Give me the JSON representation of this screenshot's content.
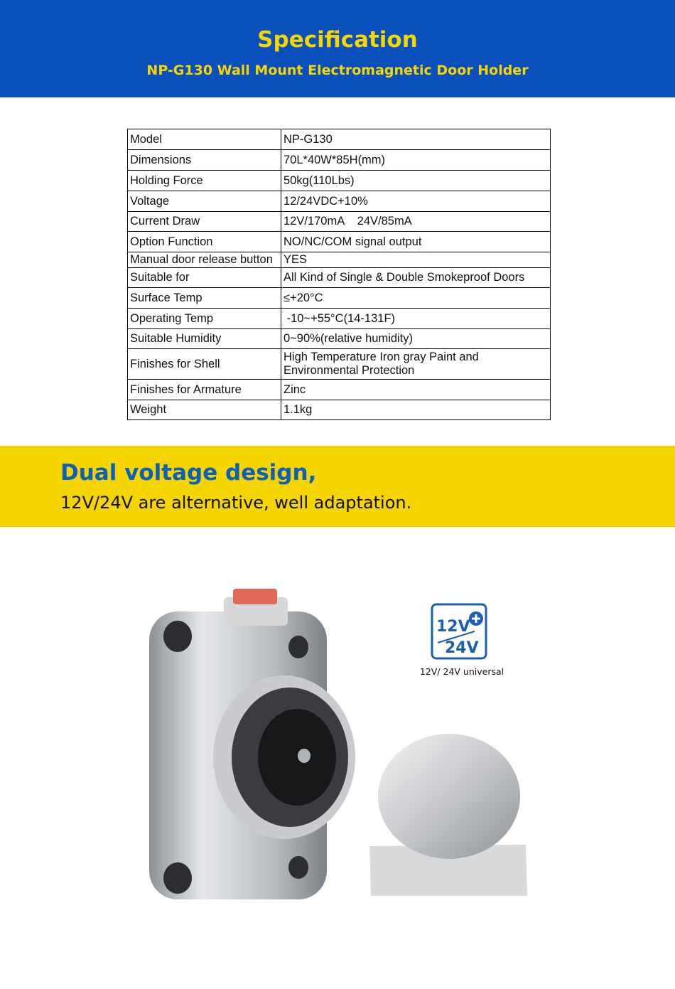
{
  "header": {
    "title": "Specification",
    "subtitle": "NP-G130 Wall Mount Electromagnetic Door Holder"
  },
  "spec_table": [
    {
      "label": "Model",
      "value": "NP-G130"
    },
    {
      "label": "Dimensions",
      "value": "70L*40W*85H(mm)"
    },
    {
      "label": "Holding Force",
      "value": "50kg(110Lbs)"
    },
    {
      "label": "Voltage",
      "value": "12/24VDC+10%"
    },
    {
      "label": "Current Draw",
      "value": "12V/170mA    24V/85mA"
    },
    {
      "label": "Option Function",
      "value": "NO/NC/COM signal output"
    },
    {
      "label": "Manual door release button",
      "value": "YES"
    },
    {
      "label": "Suitable for",
      "value": "All Kind of Single & Double Smokeproof Doors"
    },
    {
      "label": "Surface Temp",
      "value": "≤+20°C"
    },
    {
      "label": "Operating Temp",
      "value": " -10~+55°C(14-131F)"
    },
    {
      "label": "Suitable Humidity",
      "value": "0~90%(relative humidity)"
    },
    {
      "label": "Finishes for Shell",
      "value": "High Temperature Iron gray Paint and Environmental Protection"
    },
    {
      "label": "Finishes for Armature",
      "value": "Zinc"
    },
    {
      "label": "Weight",
      "value": "1.1kg"
    }
  ],
  "feature": {
    "headline": "Dual voltage design,",
    "text": "12V/24V are alternative, well adaptation."
  },
  "voltage_badge": {
    "top": "12V",
    "bottom": "24V",
    "caption": "12V/ 24V universal",
    "icon": "plus-icon",
    "color": "#1a5fb4"
  },
  "colors": {
    "header_bg": "#0a50bd",
    "title_yellow": "#f7d600",
    "band_bg": "#f5d500",
    "headline_blue": "#0d5fb8"
  }
}
